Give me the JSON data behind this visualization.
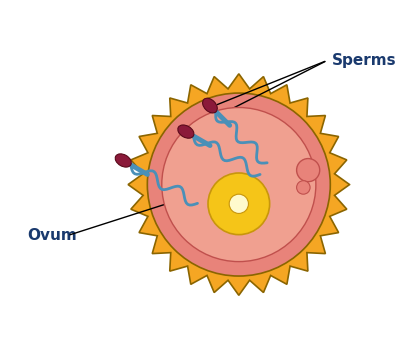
{
  "bg_color": "#ffffff",
  "ovum_outer_color": "#F5A623",
  "ovum_outer_edge": "#8B6500",
  "ovum_inner_color": "#E8837A",
  "ovum_inner_edge": "#c0504d",
  "ovum_cytoplasm_color": "#F0A090",
  "nucleus_color": "#F5C518",
  "nucleus_edge": "#c8960c",
  "nucleus_inner_color": "#FFFACD",
  "sperm_head_color": "#8B1A3A",
  "sperm_tail_color": "#4A90B8",
  "label_sperms": "Sperms",
  "label_ovum": "Ovum",
  "label_color": "#1a3a6e",
  "label_fontsize": 11,
  "figsize": [
    4.08,
    3.46
  ],
  "dpi": 100
}
